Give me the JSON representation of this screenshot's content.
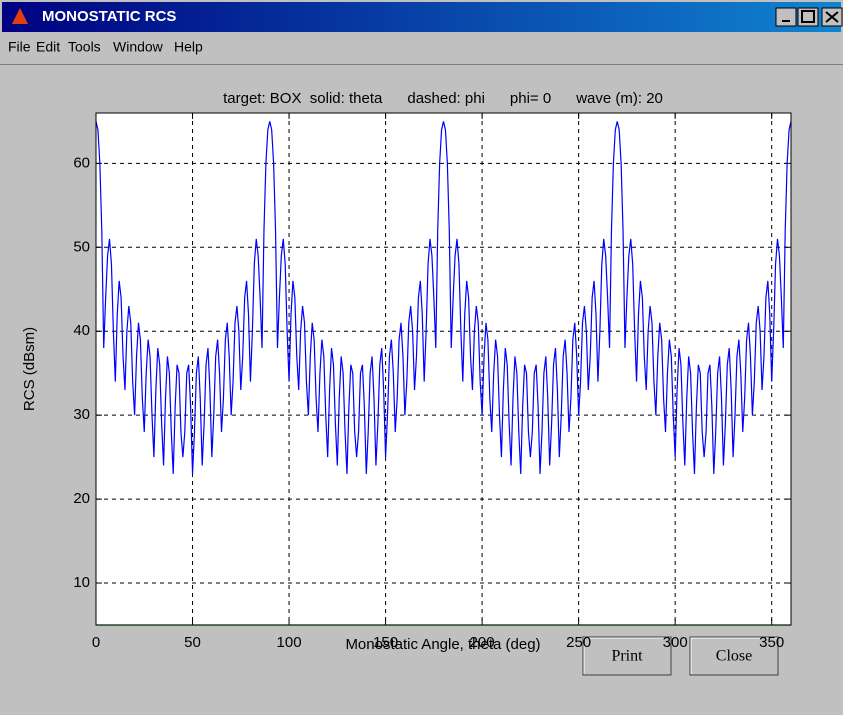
{
  "window": {
    "title": "MONOSTATIC RCS"
  },
  "menu": [
    "File",
    "Edit",
    "Tools",
    "Window",
    "Help"
  ],
  "buttons": [
    "Print",
    "Close"
  ],
  "chart_data": {
    "type": "line",
    "title": "target: BOX  solid: theta      dashed: phi      phi= 0      wave (m): 20",
    "xlabel": "Monostatic Angle, theta (deg)",
    "ylabel": "RCS (dBsm)",
    "xlim": [
      0,
      360
    ],
    "ylim": [
      5,
      66
    ],
    "xticks": [
      0,
      50,
      100,
      150,
      200,
      250,
      300,
      350
    ],
    "yticks": [
      10,
      20,
      30,
      40,
      50,
      60
    ],
    "grid": true,
    "series": [
      {
        "color": "#0000ff",
        "x": [
          0,
          1,
          2,
          3,
          4,
          5,
          6,
          7,
          8,
          9,
          10,
          11,
          12,
          13,
          14,
          15,
          16,
          17,
          18,
          19,
          20,
          21,
          22,
          23,
          24,
          25,
          26,
          27,
          28,
          29,
          30,
          31,
          32,
          33,
          34,
          35,
          36,
          37,
          38,
          39,
          40,
          41,
          42,
          43,
          44,
          45,
          46,
          47,
          48,
          49,
          50,
          51,
          52,
          53,
          54,
          55,
          56,
          57,
          58,
          59,
          60,
          61,
          62,
          63,
          64,
          65,
          66,
          67,
          68,
          69,
          70,
          71,
          72,
          73,
          74,
          75,
          76,
          77,
          78,
          79,
          80,
          81,
          82,
          83,
          84,
          85,
          86,
          87,
          88,
          89,
          90,
          91,
          92,
          93,
          94,
          95,
          96,
          97,
          98,
          99,
          100,
          101,
          102,
          103,
          104,
          105,
          106,
          107,
          108,
          109,
          110,
          111,
          112,
          113,
          114,
          115,
          116,
          117,
          118,
          119,
          120,
          121,
          122,
          123,
          124,
          125,
          126,
          127,
          128,
          129,
          130,
          131,
          132,
          133,
          134,
          135,
          136,
          137,
          138,
          139,
          140,
          141,
          142,
          143,
          144,
          145,
          146,
          147,
          148,
          149,
          150,
          151,
          152,
          153,
          154,
          155,
          156,
          157,
          158,
          159,
          160,
          161,
          162,
          163,
          164,
          165,
          166,
          167,
          168,
          169,
          170,
          171,
          172,
          173,
          174,
          175,
          176,
          177,
          178,
          179,
          180,
          181,
          182,
          183,
          184,
          185,
          186,
          187,
          188,
          189,
          190,
          191,
          192,
          193,
          194,
          195,
          196,
          197,
          198,
          199,
          200,
          201,
          202,
          203,
          204,
          205,
          206,
          207,
          208,
          209,
          210,
          211,
          212,
          213,
          214,
          215,
          216,
          217,
          218,
          219,
          220,
          221,
          222,
          223,
          224,
          225,
          226,
          227,
          228,
          229,
          230,
          231,
          232,
          233,
          234,
          235,
          236,
          237,
          238,
          239,
          240,
          241,
          242,
          243,
          244,
          245,
          246,
          247,
          248,
          249,
          250,
          251,
          252,
          253,
          254,
          255,
          256,
          257,
          258,
          259,
          260,
          261,
          262,
          263,
          264,
          265,
          266,
          267,
          268,
          269,
          270,
          271,
          272,
          273,
          274,
          275,
          276,
          277,
          278,
          279,
          280,
          281,
          282,
          283,
          284,
          285,
          286,
          287,
          288,
          289,
          290,
          291,
          292,
          293,
          294,
          295,
          296,
          297,
          298,
          299,
          300,
          301,
          302,
          303,
          304,
          305,
          306,
          307,
          308,
          309,
          310,
          311,
          312,
          313,
          314,
          315,
          316,
          317,
          318,
          319,
          320,
          321,
          322,
          323,
          324,
          325,
          326,
          327,
          328,
          329,
          330,
          331,
          332,
          333,
          334,
          335,
          336,
          337,
          338,
          339,
          340,
          341,
          342,
          343,
          344,
          345,
          346,
          347,
          348,
          349,
          350,
          351,
          352,
          353,
          354,
          355,
          356,
          357,
          358,
          359,
          360
        ],
        "values": [
          65,
          64,
          60,
          52,
          38,
          44,
          49,
          51,
          48,
          40,
          34,
          42,
          46,
          44,
          37,
          33,
          40,
          43,
          41,
          34,
          30,
          37,
          41,
          39,
          32,
          28,
          35,
          39,
          37,
          30,
          25,
          33,
          38,
          36,
          29,
          24,
          32,
          37,
          35,
          28,
          23,
          31,
          36,
          35,
          28,
          25,
          28,
          35,
          36,
          31,
          23,
          28,
          35,
          37,
          32,
          24,
          29,
          36,
          38,
          33,
          25,
          30,
          37,
          39,
          35,
          28,
          32,
          39,
          41,
          37,
          30,
          34,
          41,
          43,
          40,
          33,
          37,
          44,
          46,
          42,
          34,
          40,
          48,
          51,
          49,
          44,
          38,
          52,
          60,
          64,
          65,
          64,
          60,
          52,
          38,
          44,
          49,
          51,
          48,
          40,
          34,
          42,
          46,
          44,
          37,
          33,
          40,
          43,
          41,
          34,
          30,
          37,
          41,
          39,
          32,
          28,
          35,
          39,
          37,
          30,
          25,
          33,
          38,
          36,
          29,
          24,
          32,
          37,
          35,
          28,
          23,
          31,
          36,
          35,
          28,
          25,
          28,
          35,
          36,
          31,
          23,
          28,
          35,
          37,
          32,
          24,
          29,
          36,
          38,
          33,
          25,
          30,
          37,
          39,
          35,
          28,
          32,
          39,
          41,
          37,
          30,
          34,
          41,
          43,
          40,
          33,
          37,
          44,
          46,
          42,
          34,
          40,
          48,
          51,
          49,
          44,
          38,
          52,
          60,
          64,
          65,
          64,
          60,
          52,
          38,
          44,
          49,
          51,
          48,
          40,
          34,
          42,
          46,
          44,
          37,
          33,
          40,
          43,
          41,
          34,
          30,
          37,
          41,
          39,
          32,
          28,
          35,
          39,
          37,
          30,
          25,
          33,
          38,
          36,
          29,
          24,
          32,
          37,
          35,
          28,
          23,
          31,
          36,
          35,
          28,
          25,
          28,
          35,
          36,
          31,
          23,
          28,
          35,
          37,
          32,
          24,
          29,
          36,
          38,
          33,
          25,
          30,
          37,
          39,
          35,
          28,
          32,
          39,
          41,
          37,
          30,
          34,
          41,
          43,
          40,
          33,
          37,
          44,
          46,
          42,
          34,
          40,
          48,
          51,
          49,
          44,
          38,
          52,
          60,
          64,
          65,
          64,
          60,
          52,
          38,
          44,
          49,
          51,
          48,
          40,
          34,
          42,
          46,
          44,
          37,
          33,
          40,
          43,
          41,
          34,
          30,
          37,
          41,
          39,
          32,
          28,
          35,
          39,
          37,
          30,
          25,
          33,
          38,
          36,
          29,
          24,
          32,
          37,
          35,
          28,
          23,
          31,
          36,
          35,
          28,
          25,
          28,
          35,
          36,
          31,
          23,
          28,
          35,
          37,
          32,
          24,
          29,
          36,
          38,
          33,
          25,
          30,
          37,
          39,
          35,
          28,
          32,
          39,
          41,
          37,
          30,
          34,
          41,
          43,
          40,
          33,
          37,
          44,
          46,
          42,
          34,
          40,
          48,
          51,
          49,
          44,
          38,
          52,
          60,
          64,
          65
        ]
      },
      {
        "color": "#00a000",
        "x": [
          0,
          360
        ],
        "values": [
          5,
          5
        ]
      }
    ]
  }
}
